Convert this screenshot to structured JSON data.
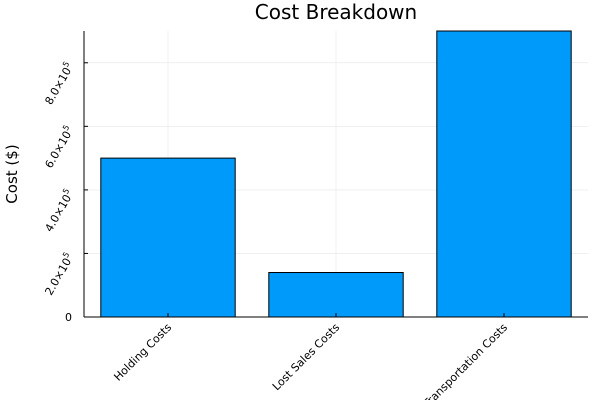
{
  "chart_data": {
    "type": "bar",
    "title": "Cost Breakdown",
    "xlabel": "",
    "ylabel": "Cost ($)",
    "categories": [
      "Holding Costs",
      "Lost Sales Costs",
      "Transportation Costs"
    ],
    "values": [
      500000,
      140000,
      900000
    ],
    "ylim": [
      0,
      900000
    ],
    "yticks": [
      {
        "value": 0,
        "mantissa": "0",
        "exponent": ""
      },
      {
        "value": 200000,
        "mantissa": "2.0×10",
        "exponent": "5"
      },
      {
        "value": 400000,
        "mantissa": "4.0×10",
        "exponent": "5"
      },
      {
        "value": 600000,
        "mantissa": "6.0×10",
        "exponent": "5"
      },
      {
        "value": 800000,
        "mantissa": "8.0×10",
        "exponent": "5"
      }
    ],
    "bar_color": "#009AFA",
    "grid": true,
    "legend": "none"
  }
}
